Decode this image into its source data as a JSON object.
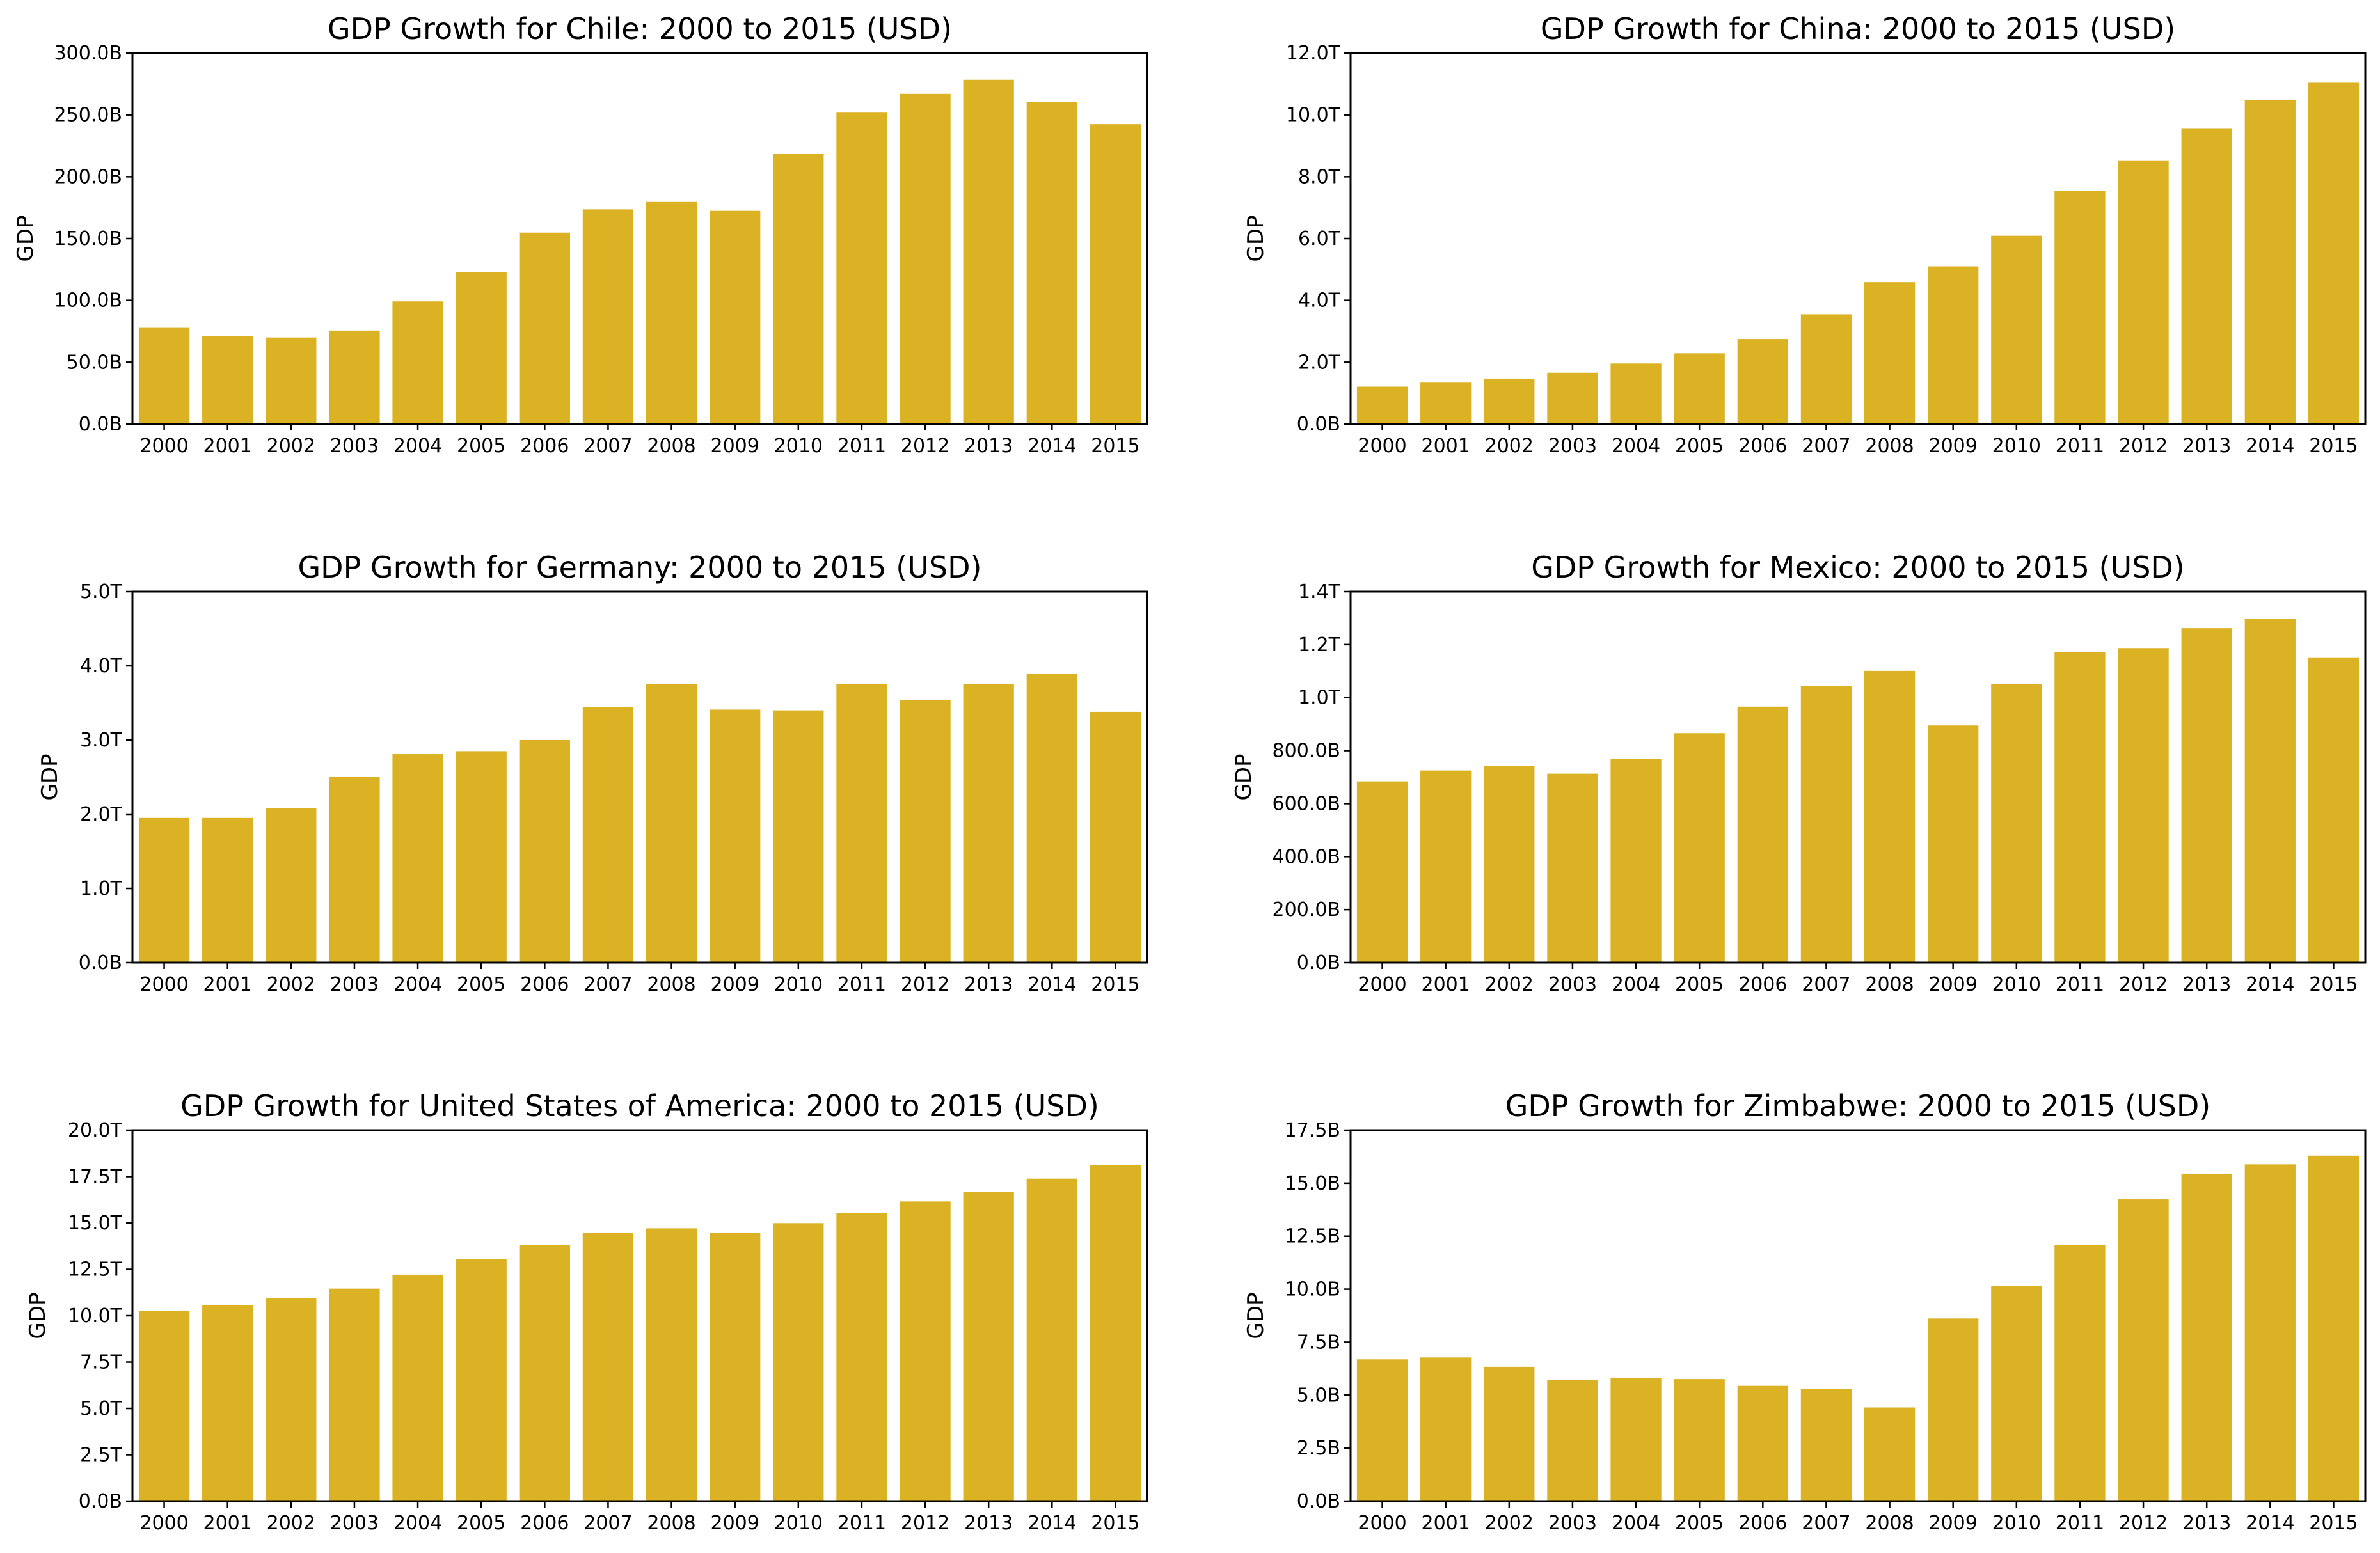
{
  "chart_data": [
    {
      "type": "bar",
      "title": "GDP Growth for Chile: 2000 to 2015 (USD)",
      "xlabel": "",
      "ylabel": "GDP",
      "categories": [
        "2000",
        "2001",
        "2002",
        "2003",
        "2004",
        "2005",
        "2006",
        "2007",
        "2008",
        "2009",
        "2010",
        "2011",
        "2012",
        "2013",
        "2014",
        "2015"
      ],
      "values": [
        77.8,
        71.0,
        70.0,
        75.6,
        99.2,
        123.1,
        154.8,
        173.6,
        179.6,
        172.4,
        218.5,
        252.3,
        267.0,
        278.4,
        260.5,
        242.5
      ],
      "value_unit": "billion USD",
      "ylim": [
        0,
        300
      ],
      "yticks": [
        "0.0B",
        "50.0B",
        "100.0B",
        "150.0B",
        "200.0B",
        "250.0B",
        "300.0B"
      ],
      "bar_color": "#dcb225",
      "grid": false
    },
    {
      "type": "bar",
      "title": "GDP Growth for China: 2000 to 2015 (USD)",
      "xlabel": "",
      "ylabel": "GDP",
      "categories": [
        "2000",
        "2001",
        "2002",
        "2003",
        "2004",
        "2005",
        "2006",
        "2007",
        "2008",
        "2009",
        "2010",
        "2011",
        "2012",
        "2013",
        "2014",
        "2015"
      ],
      "values": [
        1.21,
        1.34,
        1.47,
        1.66,
        1.96,
        2.29,
        2.75,
        3.55,
        4.59,
        5.1,
        6.09,
        7.55,
        8.53,
        9.57,
        10.48,
        11.06
      ],
      "value_unit": "trillion USD",
      "ylim": [
        0,
        12
      ],
      "yticks": [
        "0.0B",
        "2.0T",
        "4.0T",
        "6.0T",
        "8.0T",
        "10.0T",
        "12.0T"
      ],
      "bar_color": "#dcb225",
      "grid": false
    },
    {
      "type": "bar",
      "title": "GDP Growth for Germany: 2000 to 2015 (USD)",
      "xlabel": "",
      "ylabel": "GDP",
      "categories": [
        "2000",
        "2001",
        "2002",
        "2003",
        "2004",
        "2005",
        "2006",
        "2007",
        "2008",
        "2009",
        "2010",
        "2011",
        "2012",
        "2013",
        "2014",
        "2015"
      ],
      "values": [
        1.95,
        1.95,
        2.08,
        2.5,
        2.81,
        2.85,
        3.0,
        3.44,
        3.75,
        3.41,
        3.4,
        3.75,
        3.54,
        3.75,
        3.89,
        3.38
      ],
      "value_unit": "trillion USD",
      "ylim": [
        0,
        5
      ],
      "yticks": [
        "0.0B",
        "1.0T",
        "2.0T",
        "3.0T",
        "4.0T",
        "5.0T"
      ],
      "bar_color": "#dcb225",
      "grid": false
    },
    {
      "type": "bar",
      "title": "GDP Growth for Mexico: 2000 to 2015 (USD)",
      "xlabel": "",
      "ylabel": "GDP",
      "categories": [
        "2000",
        "2001",
        "2002",
        "2003",
        "2004",
        "2005",
        "2006",
        "2007",
        "2008",
        "2009",
        "2010",
        "2011",
        "2012",
        "2013",
        "2014",
        "2015"
      ],
      "values": [
        684,
        725,
        742,
        713,
        770,
        866,
        966,
        1043,
        1101,
        895,
        1051,
        1171,
        1187,
        1262,
        1298,
        1152
      ],
      "value_unit": "billion USD",
      "ylim": [
        0,
        1400
      ],
      "yticks": [
        "0.0B",
        "200.0B",
        "400.0B",
        "600.0B",
        "800.0B",
        "1.0T",
        "1.2T",
        "1.4T"
      ],
      "bar_color": "#dcb225",
      "grid": false
    },
    {
      "type": "bar",
      "title": "GDP Growth for United States of America: 2000 to 2015 (USD)",
      "xlabel": "",
      "ylabel": "GDP",
      "categories": [
        "2000",
        "2001",
        "2002",
        "2003",
        "2004",
        "2005",
        "2006",
        "2007",
        "2008",
        "2009",
        "2010",
        "2011",
        "2012",
        "2013",
        "2014",
        "2015"
      ],
      "values": [
        10.25,
        10.58,
        10.94,
        11.46,
        12.21,
        13.04,
        13.82,
        14.45,
        14.71,
        14.45,
        14.99,
        15.54,
        16.16,
        16.69,
        17.39,
        18.12
      ],
      "value_unit": "trillion USD",
      "ylim": [
        0,
        20
      ],
      "yticks": [
        "0.0B",
        "2.5T",
        "5.0T",
        "7.5T",
        "10.0T",
        "12.5T",
        "15.0T",
        "17.5T",
        "20.0T"
      ],
      "bar_color": "#dcb225",
      "grid": false
    },
    {
      "type": "bar",
      "title": "GDP Growth for Zimbabwe: 2000 to 2015 (USD)",
      "xlabel": "",
      "ylabel": "GDP",
      "categories": [
        "2000",
        "2001",
        "2002",
        "2003",
        "2004",
        "2005",
        "2006",
        "2007",
        "2008",
        "2009",
        "2010",
        "2011",
        "2012",
        "2013",
        "2014",
        "2015"
      ],
      "values": [
        6.69,
        6.78,
        6.34,
        5.73,
        5.81,
        5.76,
        5.44,
        5.29,
        4.42,
        8.62,
        10.14,
        12.1,
        14.24,
        15.45,
        15.89,
        16.3
      ],
      "value_unit": "billion USD",
      "ylim": [
        0,
        17.5
      ],
      "yticks": [
        "0.0B",
        "2.5B",
        "5.0B",
        "7.5B",
        "10.0B",
        "12.5B",
        "15.0B",
        "17.5B"
      ],
      "bar_color": "#dcb225",
      "grid": false
    }
  ]
}
